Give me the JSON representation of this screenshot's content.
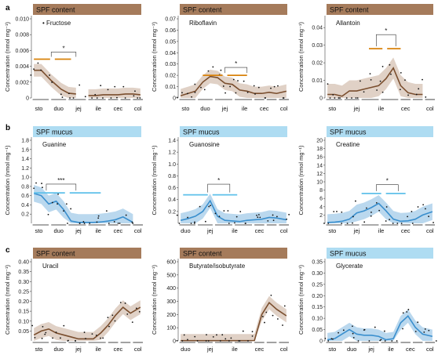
{
  "colors": {
    "content": "#a57b5b",
    "mucus": "#aedcf2",
    "mucus_line": "#3a8fce",
    "bar_orange": "#d9820a",
    "bar_blue": "#5ec0ea"
  },
  "x_categories": [
    "sto",
    "duo",
    "jej",
    "ile",
    "cec",
    "col"
  ],
  "chart_data": [
    {
      "type": "line",
      "panel_letter": "a",
      "header": "SPF content",
      "metabolite": "Fructose",
      "ylabel": "Concentration (nmol mg⁻¹)",
      "ylim": [
        0,
        0.01
      ],
      "yticks": [
        "0",
        "0.002",
        "0.004",
        "0.006",
        "0.008",
        "0.010"
      ],
      "xticks": [
        "sto",
        "duo",
        "jej",
        "ile",
        "cec",
        "col"
      ],
      "theme": "content",
      "series": [
        {
          "segments": [
            [
              [
                0.2,
                0.0035
              ],
              [
                0.8,
                0.0035
              ],
              [
                1.6,
                0.0022
              ],
              [
                2.4,
                0.0011
              ],
              [
                3.0,
                0.0006
              ],
              [
                3.6,
                0.0005
              ]
            ],
            [
              [
                4.6,
                0.0003
              ],
              [
                5.2,
                0.0003
              ],
              [
                5.8,
                0.0004
              ],
              [
                6.4,
                0.0004
              ],
              [
                7.0,
                0.0004
              ],
              [
                7.6,
                0.0005
              ],
              [
                8.2,
                0.0005
              ],
              [
                8.8,
                0.0004
              ]
            ]
          ],
          "band": 0.0008
        }
      ],
      "sig": [
        {
          "label": "*",
          "x1": 0.2,
          "x2": 3.2,
          "y": 0.0049,
          "bracket": [
            1.6,
            3.6
          ],
          "by": 0.0058
        }
      ]
    },
    {
      "type": "line",
      "panel_letter": "",
      "header": "SPF content",
      "metabolite": "Riboflavin",
      "ylabel": "Concentration (nmol mg⁻¹)",
      "ylim": [
        0,
        0.07
      ],
      "yticks": [
        "0",
        "0.01",
        "0.02",
        "0.03",
        "0.04",
        "0.05",
        "0.06",
        "0.07"
      ],
      "xticks": [
        "sto",
        "duo",
        "jej",
        "ile",
        "cec",
        "col"
      ],
      "theme": "content",
      "series": [
        {
          "segments": [
            [
              [
                0.2,
                0.002
              ],
              [
                0.8,
                0.004
              ],
              [
                1.4,
                0.006
              ],
              [
                2.0,
                0.014
              ],
              [
                2.6,
                0.019
              ],
              [
                3.2,
                0.018
              ],
              [
                3.8,
                0.013
              ],
              [
                4.4,
                0.012
              ],
              [
                5.0,
                0.007
              ],
              [
                5.6,
                0.006
              ],
              [
                6.2,
                0.004
              ],
              [
                6.8,
                0.004
              ],
              [
                7.4,
                0.005
              ],
              [
                8.0,
                0.004
              ],
              [
                8.8,
                0.006
              ]
            ]
          ],
          "band": 0.006
        }
      ],
      "sig": [
        {
          "label": "*",
          "x1": 2.0,
          "x2": 5.6,
          "y": 0.02,
          "bracket": [
            3.8,
            5.6
          ],
          "by": 0.027
        }
      ]
    },
    {
      "type": "line",
      "panel_letter": "",
      "header": "SPF content",
      "metabolite": "Allantoin",
      "ylabel": "Concentration (nmol mg⁻¹)",
      "ylim": [
        0,
        0.045
      ],
      "yticks": [
        "0",
        "0.01",
        "0.02",
        "0.03",
        "0.04"
      ],
      "xticks": [
        "sto",
        "jej",
        "ile",
        "cec",
        "col"
      ],
      "theme": "content",
      "series": [
        {
          "segments": [
            [
              [
                0.2,
                0.002
              ],
              [
                0.8,
                0.002
              ],
              [
                1.4,
                0.001
              ],
              [
                2.0,
                0.004
              ],
              [
                2.6,
                0.004
              ],
              [
                3.2,
                0.005
              ],
              [
                3.8,
                0.006
              ],
              [
                4.4,
                0.007
              ],
              [
                5.0,
                0.011
              ],
              [
                5.6,
                0.017
              ],
              [
                6.2,
                0.007
              ],
              [
                6.8,
                0.003
              ],
              [
                7.4,
                0.002
              ],
              [
                8.0,
                0.002
              ]
            ]
          ],
          "band": 0.006
        }
      ],
      "sig": [
        {
          "label": "*",
          "x1": 3.6,
          "x2": 6.2,
          "y": 0.028,
          "bracket": [
            4.2,
            5.8
          ],
          "by": 0.036
        }
      ]
    },
    {
      "type": "line",
      "panel_letter": "b",
      "header": "SPF mucus",
      "metabolite": "Guanine",
      "ylabel": "Concentration (nmol mg⁻¹)",
      "ylim": [
        0,
        1.8
      ],
      "yticks": [
        "0.2",
        "0.4",
        "0.6",
        "0.8",
        "1.0",
        "1.2",
        "1.4",
        "1.6",
        "1.8"
      ],
      "xticks": [
        "sto",
        "duo",
        "jej",
        "ile",
        "cec",
        "col"
      ],
      "theme": "mucus",
      "series": [
        {
          "segments": [
            [
              [
                0.2,
                0.65
              ],
              [
                0.8,
                0.6
              ],
              [
                1.4,
                0.42
              ],
              [
                2.0,
                0.48
              ],
              [
                2.6,
                0.3
              ],
              [
                3.2,
                0.05
              ],
              [
                3.8,
                0.02
              ],
              [
                4.4,
                0.02
              ],
              [
                5.0,
                0.02
              ],
              [
                5.6,
                0.03
              ],
              [
                6.2,
                0.05
              ],
              [
                6.8,
                0.08
              ],
              [
                7.4,
                0.14
              ],
              [
                8.2,
                0.02
              ]
            ]
          ],
          "band": 0.18
        }
      ],
      "sig": [
        {
          "label": "***",
          "x1": 0.2,
          "x2": 5.6,
          "y": 0.66,
          "bracket": [
            1.2,
            3.6
          ],
          "by": 0.85
        }
      ]
    },
    {
      "type": "line",
      "panel_letter": "",
      "header": "SPF mucus",
      "metabolite": "Guanosine",
      "ylabel": "Concentration (nmol mg⁻¹)",
      "ylim": [
        0,
        1.4
      ],
      "yticks": [
        "0.2",
        "0.4",
        "0.6",
        "0.8",
        "1.0",
        "1.2",
        "1.4"
      ],
      "xticks": [
        "duo",
        "jej",
        "ile",
        "cec",
        "col"
      ],
      "theme": "mucus",
      "series": [
        {
          "segments": [
            [
              [
                0.2,
                0.05
              ],
              [
                0.8,
                0.08
              ],
              [
                1.4,
                0.12
              ],
              [
                2.0,
                0.2
              ],
              [
                2.6,
                0.38
              ],
              [
                3.2,
                0.12
              ],
              [
                3.8,
                0.05
              ],
              [
                4.4,
                0.04
              ],
              [
                5.0,
                0.03
              ],
              [
                5.6,
                0.05
              ],
              [
                6.2,
                0.06
              ],
              [
                6.8,
                0.07
              ],
              [
                7.4,
                0.1
              ],
              [
                8.0,
                0.09
              ],
              [
                8.8,
                0.06
              ]
            ]
          ],
          "band": 0.12
        }
      ],
      "sig": [
        {
          "label": "*",
          "x1": 0.4,
          "x2": 4.8,
          "y": 0.48,
          "bracket": [
            2.4,
            4.2
          ],
          "by": 0.66
        }
      ]
    },
    {
      "type": "line",
      "panel_letter": "",
      "header": "SPF mucus",
      "metabolite": "Creatine",
      "ylabel": "Concentration (nmol mg⁻¹)",
      "ylim": [
        0,
        20
      ],
      "yticks": [
        "2",
        "4",
        "6",
        "8",
        "10",
        "12",
        "14",
        "16",
        "18",
        "20"
      ],
      "xticks": [
        "sto",
        "jej",
        "ile",
        "cec",
        "col"
      ],
      "theme": "mucus",
      "series": [
        {
          "segments": [
            [
              [
                0.2,
                0.2
              ],
              [
                0.8,
                0.3
              ],
              [
                1.4,
                0.5
              ],
              [
                2.0,
                1.0
              ],
              [
                2.6,
                2.5
              ],
              [
                3.2,
                3.0
              ],
              [
                3.8,
                3.8
              ],
              [
                4.4,
                4.8
              ],
              [
                5.0,
                3.0
              ],
              [
                5.6,
                1.0
              ],
              [
                6.2,
                0.5
              ],
              [
                6.8,
                0.6
              ],
              [
                7.4,
                1.0
              ],
              [
                8.0,
                2.0
              ],
              [
                8.8,
                2.8
              ]
            ]
          ],
          "band": 2.0
        }
      ],
      "sig": [
        {
          "label": "*",
          "x1": 3.0,
          "x2": 6.6,
          "y": 7.2,
          "bracket": [
            4.2,
            6.0
          ],
          "by": 9.3
        }
      ]
    },
    {
      "type": "line",
      "panel_letter": "c",
      "header": "SPF content",
      "metabolite": "Uracil",
      "ylabel": "Concentration (nmol mg⁻¹)",
      "ylim": [
        0,
        0.4
      ],
      "yticks": [
        "0.05",
        "0.10",
        "0.15",
        "0.20",
        "0.25",
        "0.30",
        "0.35",
        "0.40"
      ],
      "xticks": [
        "sto",
        "duo",
        "jej",
        "ile",
        "cec",
        "col"
      ],
      "theme": "content",
      "series": [
        {
          "segments": [
            [
              [
                0.2,
                0.03
              ],
              [
                0.8,
                0.05
              ],
              [
                1.4,
                0.06
              ],
              [
                2.0,
                0.04
              ],
              [
                2.6,
                0.03
              ],
              [
                3.2,
                0.02
              ],
              [
                3.8,
                0.01
              ],
              [
                4.4,
                0.01
              ],
              [
                5.0,
                0.01
              ],
              [
                5.6,
                0.04
              ],
              [
                6.2,
                0.08
              ],
              [
                6.8,
                0.13
              ],
              [
                7.4,
                0.17
              ],
              [
                8.0,
                0.14
              ],
              [
                8.8,
                0.17
              ]
            ]
          ],
          "band": 0.035
        }
      ],
      "sig": []
    },
    {
      "type": "line",
      "panel_letter": "",
      "header": "SPF content",
      "metabolite": "Butyrate/isobutyrate",
      "ylabel": "Concentration (nmol mg⁻¹)",
      "ylim": [
        0,
        600
      ],
      "yticks": [
        "0",
        "100",
        "200",
        "300",
        "400",
        "500",
        "600"
      ],
      "xticks": [
        "duo",
        "jej",
        "ile",
        "cec",
        "col"
      ],
      "theme": "content",
      "series": [
        {
          "segments": [
            [
              [
                0.2,
                2
              ],
              [
                0.8,
                2
              ],
              [
                1.4,
                2
              ],
              [
                2.0,
                2
              ],
              [
                2.6,
                2
              ],
              [
                3.2,
                2
              ],
              [
                3.8,
                2
              ],
              [
                4.4,
                2
              ],
              [
                5.0,
                2
              ],
              [
                5.6,
                2
              ],
              [
                6.2,
                3
              ],
              [
                6.8,
                200
              ],
              [
                7.4,
                290
              ],
              [
                8.0,
                240
              ],
              [
                8.8,
                190
              ]
            ]
          ],
          "band": 50
        }
      ],
      "sig": []
    },
    {
      "type": "line",
      "panel_letter": "",
      "header": "SPF mucus",
      "metabolite": "Glycerate",
      "ylabel": "Concentration (nmol mg⁻¹)",
      "ylim": [
        0,
        0.35
      ],
      "yticks": [
        "0",
        "0.05",
        "0.10",
        "0.15",
        "0.20",
        "0.25",
        "0.30",
        "0.35"
      ],
      "xticks": [
        "sto",
        "duo",
        "jej",
        "ile",
        "cec",
        "col"
      ],
      "theme": "mucus",
      "series": [
        {
          "segments": [
            [
              [
                0.2,
                0.005
              ],
              [
                0.8,
                0.01
              ],
              [
                1.4,
                0.03
              ],
              [
                2.0,
                0.05
              ],
              [
                2.6,
                0.03
              ],
              [
                3.2,
                0.025
              ],
              [
                3.8,
                0.025
              ],
              [
                4.4,
                0.02
              ],
              [
                5.0,
                0.005
              ],
              [
                5.6,
                0.01
              ],
              [
                6.2,
                0.08
              ],
              [
                6.8,
                0.11
              ],
              [
                7.4,
                0.06
              ],
              [
                8.0,
                0.03
              ],
              [
                8.8,
                0.02
              ]
            ]
          ],
          "band": 0.03
        }
      ],
      "sig": []
    }
  ]
}
